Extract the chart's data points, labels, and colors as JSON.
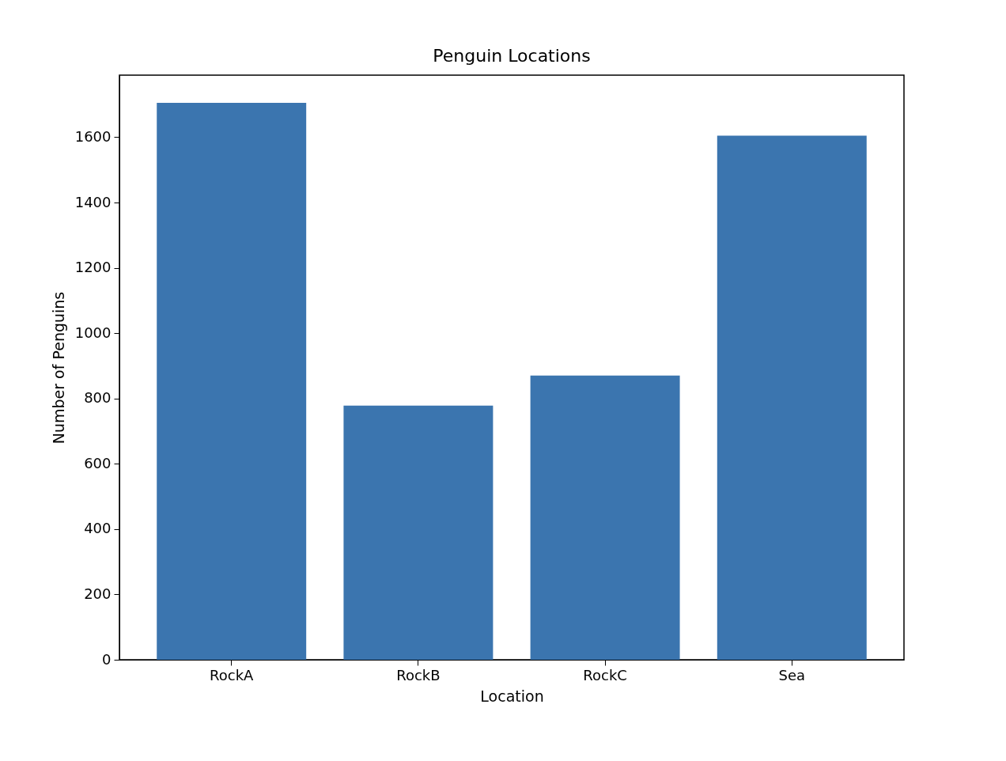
{
  "chart_data": {
    "type": "bar",
    "title": "Penguin Locations",
    "xlabel": "Location",
    "ylabel": "Number of Penguins",
    "categories": [
      "RockA",
      "RockB",
      "RockC",
      "Sea"
    ],
    "values": [
      1705,
      778,
      870,
      1605
    ],
    "color": "#3b75af",
    "ylim": [
      0,
      1790
    ],
    "yticks": [
      0,
      200,
      400,
      600,
      800,
      1000,
      1200,
      1400,
      1600
    ],
    "grid": false
  }
}
